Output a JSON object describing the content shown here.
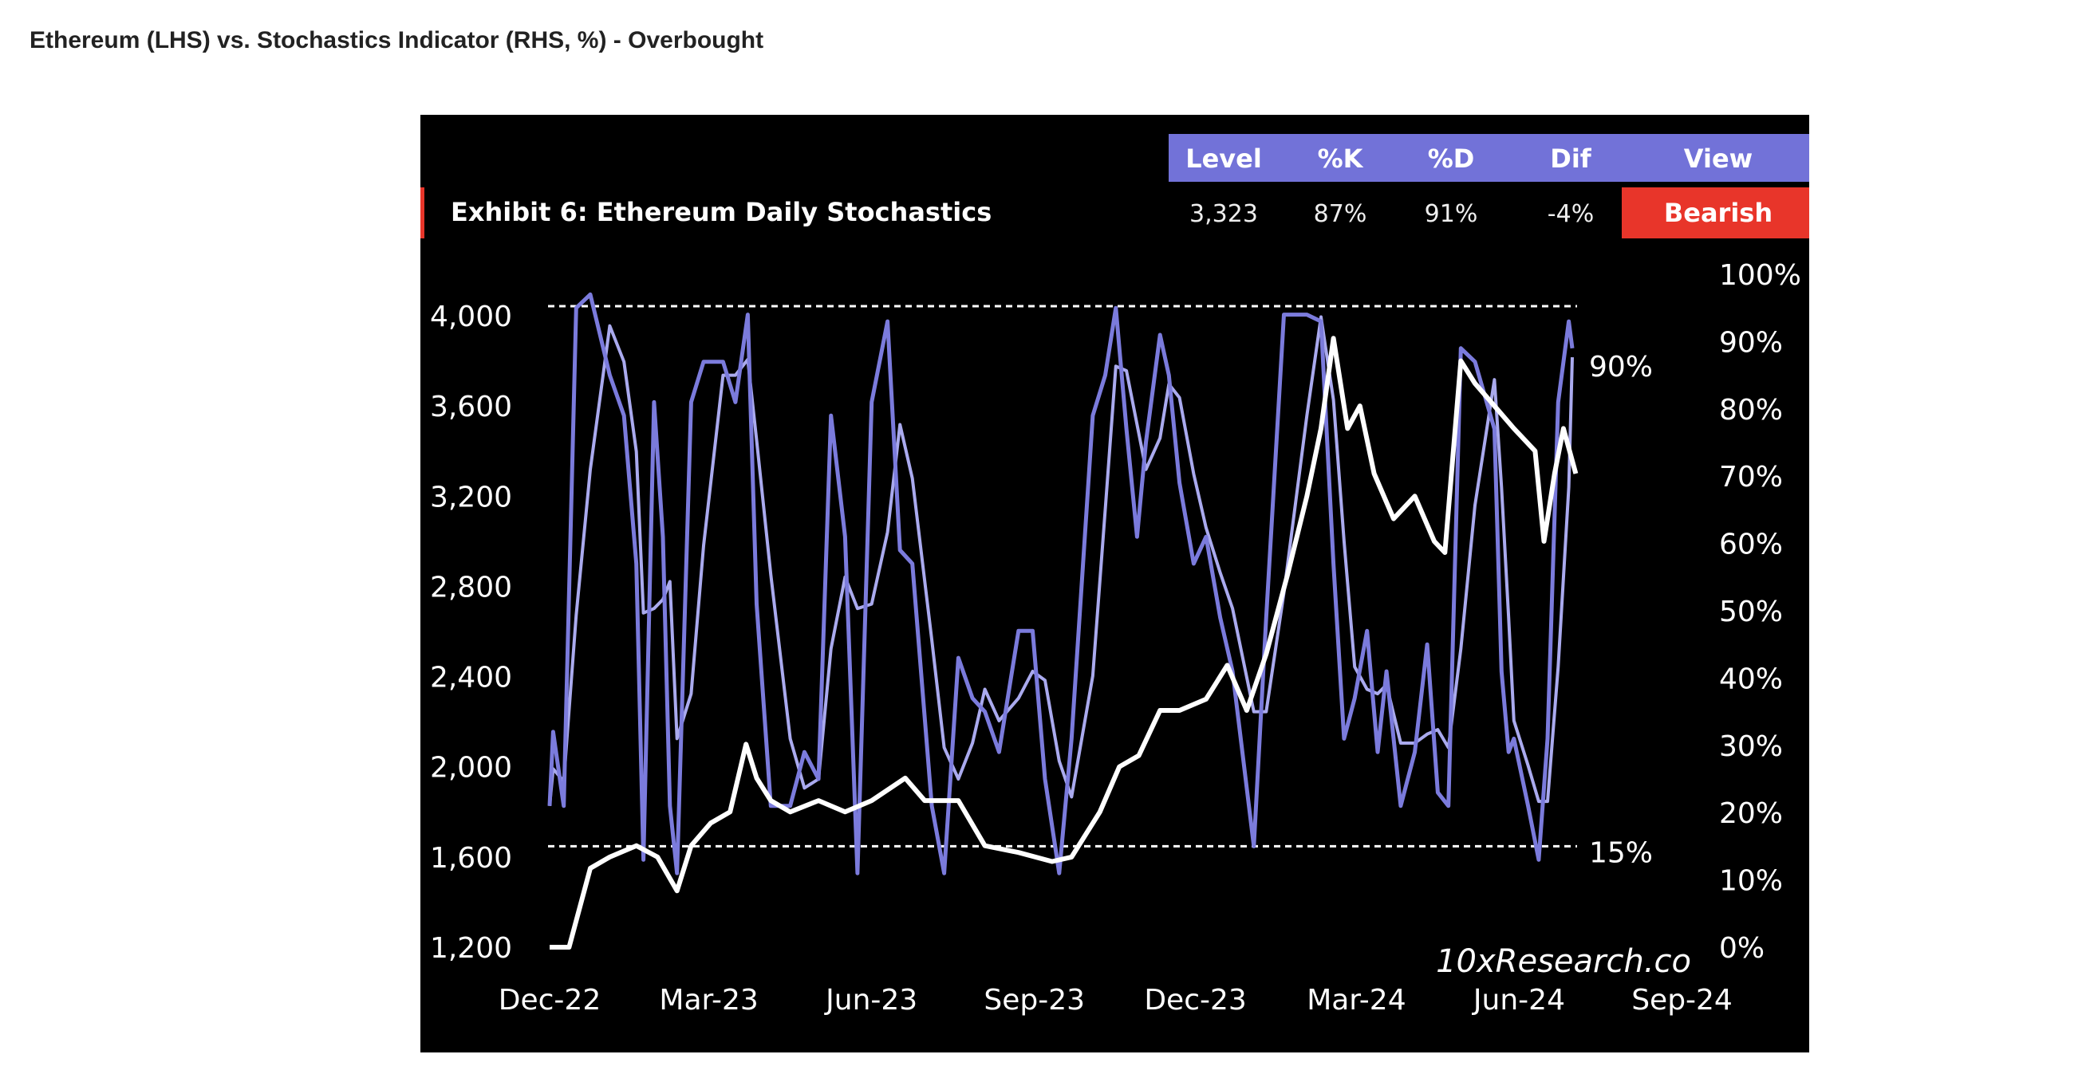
{
  "page_title": "Ethereum (LHS) vs. Stochastics Indicator (RHS, %) - Overbought",
  "colors": {
    "background": "#000000",
    "header": "#7272d8",
    "bearish": "#e8352a",
    "price": "#ffffff",
    "stochastic_k": "#7b7bdc",
    "stochastic_d": "#aaaaee"
  },
  "chart_data": {
    "type": "line",
    "title": "Exhibit 6: Ethereum Daily  Stochastics",
    "watermark": "10xResearch.co",
    "summary_table": {
      "headers": [
        "Level",
        "%K",
        "%D",
        "Dif",
        "View"
      ],
      "values": [
        "3,323",
        "87%",
        "91%",
        "-4%",
        "Bearish"
      ]
    },
    "x_ticks": [
      "Dec-22",
      "Mar-23",
      "Jun-23",
      "Sep-23",
      "Dec-23",
      "Mar-24",
      "Jun-24",
      "Sep-24"
    ],
    "x_tick_dates": [
      "2022-12-01",
      "2023-03-01",
      "2023-06-01",
      "2023-09-01",
      "2023-12-01",
      "2024-03-01",
      "2024-06-01",
      "2024-09-01"
    ],
    "y_left": {
      "ticks": [
        "1,200",
        "1,600",
        "2,000",
        "2,400",
        "2,800",
        "3,200",
        "3,600",
        "4,000"
      ],
      "range": [
        1200,
        4000
      ]
    },
    "y_right": {
      "ticks": [
        "0%",
        "10%",
        "20%",
        "30%",
        "40%",
        "50%",
        "60%",
        "70%",
        "80%",
        "90%",
        "100%"
      ],
      "range": [
        0,
        100
      ]
    },
    "reference_lines": [
      {
        "value": 90,
        "label": "90%"
      },
      {
        "value": 15,
        "label": "15%"
      }
    ],
    "grid": false,
    "series": [
      {
        "axis": "left",
        "color": "#ffffff",
        "points": [
          [
            "2022-12-01",
            1200
          ],
          [
            "2022-12-12",
            1200
          ],
          [
            "2022-12-24",
            1550
          ],
          [
            "2023-01-04",
            1600
          ],
          [
            "2023-01-19",
            1650
          ],
          [
            "2023-01-31",
            1600
          ],
          [
            "2023-02-11",
            1450
          ],
          [
            "2023-02-19",
            1650
          ],
          [
            "2023-03-02",
            1750
          ],
          [
            "2023-03-13",
            1800
          ],
          [
            "2023-03-22",
            2100
          ],
          [
            "2023-03-28",
            1950
          ],
          [
            "2023-04-05",
            1850
          ],
          [
            "2023-04-16",
            1800
          ],
          [
            "2023-05-02",
            1850
          ],
          [
            "2023-05-17",
            1800
          ],
          [
            "2023-06-01",
            1850
          ],
          [
            "2023-06-20",
            1950
          ],
          [
            "2023-07-01",
            1850
          ],
          [
            "2023-07-20",
            1850
          ],
          [
            "2023-08-04",
            1650
          ],
          [
            "2023-08-23",
            1620
          ],
          [
            "2023-09-11",
            1580
          ],
          [
            "2023-09-22",
            1600
          ],
          [
            "2023-10-08",
            1800
          ],
          [
            "2023-10-19",
            2000
          ],
          [
            "2023-10-30",
            2050
          ],
          [
            "2023-11-11",
            2250
          ],
          [
            "2023-11-22",
            2250
          ],
          [
            "2023-12-07",
            2300
          ],
          [
            "2023-12-19",
            2450
          ],
          [
            "2023-12-30",
            2250
          ],
          [
            "2024-01-10",
            2500
          ],
          [
            "2024-01-22",
            2850
          ],
          [
            "2024-02-02",
            3200
          ],
          [
            "2024-02-10",
            3500
          ],
          [
            "2024-02-17",
            3900
          ],
          [
            "2024-02-25",
            3500
          ],
          [
            "2024-03-03",
            3600
          ],
          [
            "2024-03-11",
            3300
          ],
          [
            "2024-03-22",
            3100
          ],
          [
            "2024-04-03",
            3200
          ],
          [
            "2024-04-14",
            3000
          ],
          [
            "2024-04-20",
            2950
          ],
          [
            "2024-04-29",
            3800
          ],
          [
            "2024-05-07",
            3700
          ],
          [
            "2024-05-18",
            3600
          ],
          [
            "2024-05-29",
            3500
          ],
          [
            "2024-06-10",
            3400
          ],
          [
            "2024-06-15",
            3000
          ],
          [
            "2024-06-21",
            3300
          ],
          [
            "2024-06-26",
            3500
          ],
          [
            "2024-07-03",
            3300
          ]
        ]
      },
      {
        "axis": "right",
        "color": "#7b7bdc",
        "points": [
          [
            "2022-12-01",
            21
          ],
          [
            "2022-12-03",
            32
          ],
          [
            "2022-12-09",
            21
          ],
          [
            "2022-12-16",
            95
          ],
          [
            "2022-12-24",
            97
          ],
          [
            "2023-01-04",
            85
          ],
          [
            "2023-01-12",
            79
          ],
          [
            "2023-01-19",
            57
          ],
          [
            "2023-01-23",
            13
          ],
          [
            "2023-01-29",
            81
          ],
          [
            "2023-02-03",
            61
          ],
          [
            "2023-02-07",
            21
          ],
          [
            "2023-02-11",
            11
          ],
          [
            "2023-02-19",
            81
          ],
          [
            "2023-02-26",
            87
          ],
          [
            "2023-03-09",
            87
          ],
          [
            "2023-03-16",
            81
          ],
          [
            "2023-03-23",
            94
          ],
          [
            "2023-03-28",
            51
          ],
          [
            "2023-04-05",
            21
          ],
          [
            "2023-04-16",
            21
          ],
          [
            "2023-04-24",
            29
          ],
          [
            "2023-05-02",
            25
          ],
          [
            "2023-05-09",
            79
          ],
          [
            "2023-05-17",
            61
          ],
          [
            "2023-05-24",
            11
          ],
          [
            "2023-06-01",
            81
          ],
          [
            "2023-06-10",
            93
          ],
          [
            "2023-06-17",
            59
          ],
          [
            "2023-06-24",
            57
          ],
          [
            "2023-07-05",
            21
          ],
          [
            "2023-07-12",
            11
          ],
          [
            "2023-07-20",
            43
          ],
          [
            "2023-07-28",
            37
          ],
          [
            "2023-08-04",
            35
          ],
          [
            "2023-08-12",
            29
          ],
          [
            "2023-08-23",
            47
          ],
          [
            "2023-08-31",
            47
          ],
          [
            "2023-09-07",
            25
          ],
          [
            "2023-09-15",
            11
          ],
          [
            "2023-09-22",
            31
          ],
          [
            "2023-10-04",
            79
          ],
          [
            "2023-10-11",
            85
          ],
          [
            "2023-10-17",
            95
          ],
          [
            "2023-10-23",
            77
          ],
          [
            "2023-10-29",
            61
          ],
          [
            "2023-11-03",
            75
          ],
          [
            "2023-11-11",
            91
          ],
          [
            "2023-11-16",
            85
          ],
          [
            "2023-11-22",
            69
          ],
          [
            "2023-11-30",
            57
          ],
          [
            "2023-12-07",
            61
          ],
          [
            "2023-12-15",
            49
          ],
          [
            "2023-12-22",
            41
          ],
          [
            "2024-01-03",
            15
          ],
          [
            "2024-01-10",
            49
          ],
          [
            "2024-01-20",
            94
          ],
          [
            "2024-02-02",
            94
          ],
          [
            "2024-02-10",
            93
          ],
          [
            "2024-02-17",
            57
          ],
          [
            "2024-02-23",
            31
          ],
          [
            "2024-02-29",
            37
          ],
          [
            "2024-03-07",
            47
          ],
          [
            "2024-03-13",
            29
          ],
          [
            "2024-03-18",
            41
          ],
          [
            "2024-03-26",
            21
          ],
          [
            "2024-04-03",
            29
          ],
          [
            "2024-04-10",
            45
          ],
          [
            "2024-04-16",
            23
          ],
          [
            "2024-04-22",
            21
          ],
          [
            "2024-04-29",
            89
          ],
          [
            "2024-05-07",
            87
          ],
          [
            "2024-05-18",
            77
          ],
          [
            "2024-05-22",
            41
          ],
          [
            "2024-05-26",
            29
          ],
          [
            "2024-05-29",
            31
          ],
          [
            "2024-06-06",
            21
          ],
          [
            "2024-06-12",
            13
          ],
          [
            "2024-06-17",
            31
          ],
          [
            "2024-06-23",
            81
          ],
          [
            "2024-06-29",
            93
          ],
          [
            "2024-07-01",
            89
          ]
        ]
      }
    ]
  }
}
